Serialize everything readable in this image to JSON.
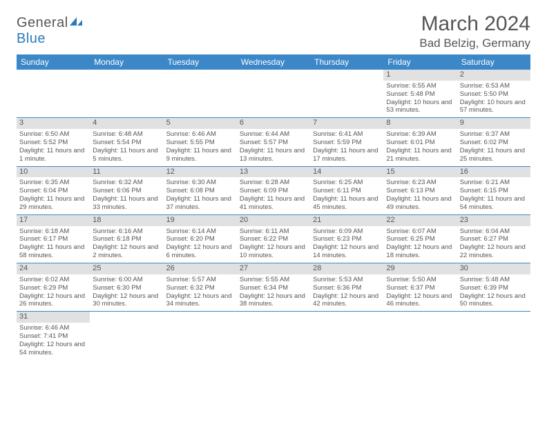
{
  "logo": {
    "part1": "General",
    "part2": "Blue"
  },
  "title": "March 2024",
  "location": "Bad Belzig, Germany",
  "colors": {
    "header_bg": "#3b87c8",
    "header_fg": "#ffffff",
    "daynum_bg": "#e1e1e1",
    "text": "#555555",
    "rule": "#3b87c8"
  },
  "day_headers": [
    "Sunday",
    "Monday",
    "Tuesday",
    "Wednesday",
    "Thursday",
    "Friday",
    "Saturday"
  ],
  "weeks": [
    [
      null,
      null,
      null,
      null,
      null,
      {
        "n": "1",
        "sr": "Sunrise: 6:55 AM",
        "ss": "Sunset: 5:48 PM",
        "dl": "Daylight: 10 hours and 53 minutes."
      },
      {
        "n": "2",
        "sr": "Sunrise: 6:53 AM",
        "ss": "Sunset: 5:50 PM",
        "dl": "Daylight: 10 hours and 57 minutes."
      }
    ],
    [
      {
        "n": "3",
        "sr": "Sunrise: 6:50 AM",
        "ss": "Sunset: 5:52 PM",
        "dl": "Daylight: 11 hours and 1 minute."
      },
      {
        "n": "4",
        "sr": "Sunrise: 6:48 AM",
        "ss": "Sunset: 5:54 PM",
        "dl": "Daylight: 11 hours and 5 minutes."
      },
      {
        "n": "5",
        "sr": "Sunrise: 6:46 AM",
        "ss": "Sunset: 5:55 PM",
        "dl": "Daylight: 11 hours and 9 minutes."
      },
      {
        "n": "6",
        "sr": "Sunrise: 6:44 AM",
        "ss": "Sunset: 5:57 PM",
        "dl": "Daylight: 11 hours and 13 minutes."
      },
      {
        "n": "7",
        "sr": "Sunrise: 6:41 AM",
        "ss": "Sunset: 5:59 PM",
        "dl": "Daylight: 11 hours and 17 minutes."
      },
      {
        "n": "8",
        "sr": "Sunrise: 6:39 AM",
        "ss": "Sunset: 6:01 PM",
        "dl": "Daylight: 11 hours and 21 minutes."
      },
      {
        "n": "9",
        "sr": "Sunrise: 6:37 AM",
        "ss": "Sunset: 6:02 PM",
        "dl": "Daylight: 11 hours and 25 minutes."
      }
    ],
    [
      {
        "n": "10",
        "sr": "Sunrise: 6:35 AM",
        "ss": "Sunset: 6:04 PM",
        "dl": "Daylight: 11 hours and 29 minutes."
      },
      {
        "n": "11",
        "sr": "Sunrise: 6:32 AM",
        "ss": "Sunset: 6:06 PM",
        "dl": "Daylight: 11 hours and 33 minutes."
      },
      {
        "n": "12",
        "sr": "Sunrise: 6:30 AM",
        "ss": "Sunset: 6:08 PM",
        "dl": "Daylight: 11 hours and 37 minutes."
      },
      {
        "n": "13",
        "sr": "Sunrise: 6:28 AM",
        "ss": "Sunset: 6:09 PM",
        "dl": "Daylight: 11 hours and 41 minutes."
      },
      {
        "n": "14",
        "sr": "Sunrise: 6:25 AM",
        "ss": "Sunset: 6:11 PM",
        "dl": "Daylight: 11 hours and 45 minutes."
      },
      {
        "n": "15",
        "sr": "Sunrise: 6:23 AM",
        "ss": "Sunset: 6:13 PM",
        "dl": "Daylight: 11 hours and 49 minutes."
      },
      {
        "n": "16",
        "sr": "Sunrise: 6:21 AM",
        "ss": "Sunset: 6:15 PM",
        "dl": "Daylight: 11 hours and 54 minutes."
      }
    ],
    [
      {
        "n": "17",
        "sr": "Sunrise: 6:18 AM",
        "ss": "Sunset: 6:17 PM",
        "dl": "Daylight: 11 hours and 58 minutes."
      },
      {
        "n": "18",
        "sr": "Sunrise: 6:16 AM",
        "ss": "Sunset: 6:18 PM",
        "dl": "Daylight: 12 hours and 2 minutes."
      },
      {
        "n": "19",
        "sr": "Sunrise: 6:14 AM",
        "ss": "Sunset: 6:20 PM",
        "dl": "Daylight: 12 hours and 6 minutes."
      },
      {
        "n": "20",
        "sr": "Sunrise: 6:11 AM",
        "ss": "Sunset: 6:22 PM",
        "dl": "Daylight: 12 hours and 10 minutes."
      },
      {
        "n": "21",
        "sr": "Sunrise: 6:09 AM",
        "ss": "Sunset: 6:23 PM",
        "dl": "Daylight: 12 hours and 14 minutes."
      },
      {
        "n": "22",
        "sr": "Sunrise: 6:07 AM",
        "ss": "Sunset: 6:25 PM",
        "dl": "Daylight: 12 hours and 18 minutes."
      },
      {
        "n": "23",
        "sr": "Sunrise: 6:04 AM",
        "ss": "Sunset: 6:27 PM",
        "dl": "Daylight: 12 hours and 22 minutes."
      }
    ],
    [
      {
        "n": "24",
        "sr": "Sunrise: 6:02 AM",
        "ss": "Sunset: 6:29 PM",
        "dl": "Daylight: 12 hours and 26 minutes."
      },
      {
        "n": "25",
        "sr": "Sunrise: 6:00 AM",
        "ss": "Sunset: 6:30 PM",
        "dl": "Daylight: 12 hours and 30 minutes."
      },
      {
        "n": "26",
        "sr": "Sunrise: 5:57 AM",
        "ss": "Sunset: 6:32 PM",
        "dl": "Daylight: 12 hours and 34 minutes."
      },
      {
        "n": "27",
        "sr": "Sunrise: 5:55 AM",
        "ss": "Sunset: 6:34 PM",
        "dl": "Daylight: 12 hours and 38 minutes."
      },
      {
        "n": "28",
        "sr": "Sunrise: 5:53 AM",
        "ss": "Sunset: 6:36 PM",
        "dl": "Daylight: 12 hours and 42 minutes."
      },
      {
        "n": "29",
        "sr": "Sunrise: 5:50 AM",
        "ss": "Sunset: 6:37 PM",
        "dl": "Daylight: 12 hours and 46 minutes."
      },
      {
        "n": "30",
        "sr": "Sunrise: 5:48 AM",
        "ss": "Sunset: 6:39 PM",
        "dl": "Daylight: 12 hours and 50 minutes."
      }
    ],
    [
      {
        "n": "31",
        "sr": "Sunrise: 6:46 AM",
        "ss": "Sunset: 7:41 PM",
        "dl": "Daylight: 12 hours and 54 minutes."
      },
      null,
      null,
      null,
      null,
      null,
      null
    ]
  ]
}
